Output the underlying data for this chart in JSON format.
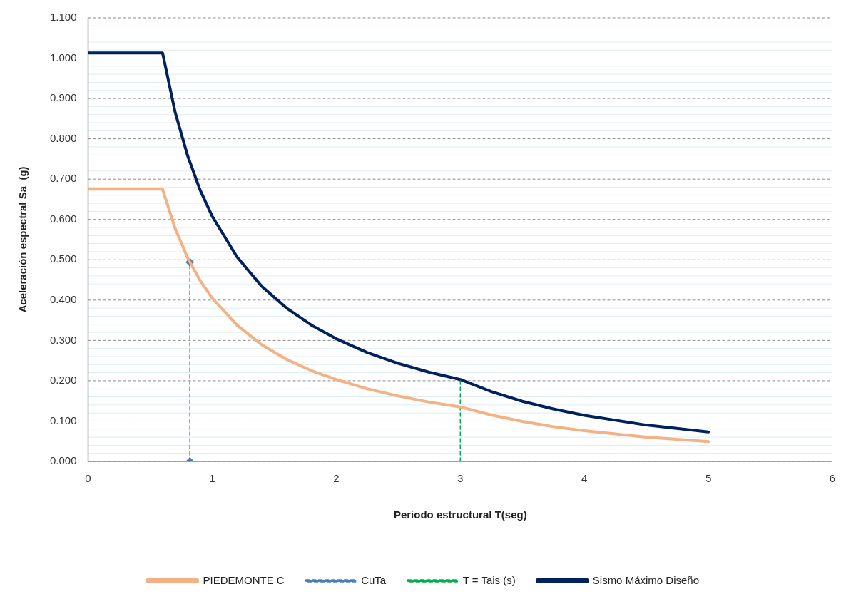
{
  "chart_data": {
    "type": "line",
    "xlabel": "Periodo estructural T(seg)",
    "ylabel": "Aceleración espectral Sa  (g)",
    "xlim": [
      0,
      6
    ],
    "xticks": [
      0,
      1,
      2,
      3,
      4,
      5,
      6
    ],
    "ylim": [
      0,
      1.1
    ],
    "yticks": [
      {
        "value": 0,
        "label": "0.000"
      },
      {
        "value": 0.02,
        "label": null
      },
      {
        "value": 0.04,
        "label": null
      },
      {
        "value": 0.06,
        "label": null
      },
      {
        "value": 0.08,
        "label": null
      },
      {
        "value": 0.1,
        "label": "0.100"
      },
      {
        "value": 0.12,
        "label": null
      },
      {
        "value": 0.14,
        "label": null
      },
      {
        "value": 0.16,
        "label": null
      },
      {
        "value": 0.18,
        "label": null
      },
      {
        "value": 0.2,
        "label": "0.200"
      },
      {
        "value": 0.22,
        "label": null
      },
      {
        "value": 0.24,
        "label": null
      },
      {
        "value": 0.26,
        "label": null
      },
      {
        "value": 0.28,
        "label": null
      },
      {
        "value": 0.3,
        "label": "0.300"
      },
      {
        "value": 0.32,
        "label": null
      },
      {
        "value": 0.34,
        "label": null
      },
      {
        "value": 0.36,
        "label": null
      },
      {
        "value": 0.38,
        "label": null
      },
      {
        "value": 0.4,
        "label": "0.400"
      },
      {
        "value": 0.42,
        "label": null
      },
      {
        "value": 0.44,
        "label": null
      },
      {
        "value": 0.46,
        "label": null
      },
      {
        "value": 0.48,
        "label": null
      },
      {
        "value": 0.5,
        "label": "0.500"
      },
      {
        "value": 0.52,
        "label": null
      },
      {
        "value": 0.54,
        "label": null
      },
      {
        "value": 0.56,
        "label": null
      },
      {
        "value": 0.58,
        "label": null
      },
      {
        "value": 0.6,
        "label": "0.600"
      },
      {
        "value": 0.62,
        "label": null
      },
      {
        "value": 0.64,
        "label": null
      },
      {
        "value": 0.66,
        "label": null
      },
      {
        "value": 0.68,
        "label": null
      },
      {
        "value": 0.7,
        "label": "0.700"
      },
      {
        "value": 0.72,
        "label": null
      },
      {
        "value": 0.74,
        "label": null
      },
      {
        "value": 0.76,
        "label": null
      },
      {
        "value": 0.78,
        "label": null
      },
      {
        "value": 0.8,
        "label": "0.800"
      },
      {
        "value": 0.82,
        "label": null
      },
      {
        "value": 0.84,
        "label": null
      },
      {
        "value": 0.86,
        "label": null
      },
      {
        "value": 0.88,
        "label": null
      },
      {
        "value": 0.9,
        "label": "0.900"
      },
      {
        "value": 0.92,
        "label": null
      },
      {
        "value": 0.94,
        "label": null
      },
      {
        "value": 0.96,
        "label": null
      },
      {
        "value": 0.98,
        "label": null
      },
      {
        "value": 1.0,
        "label": "1.000"
      },
      {
        "value": 1.02,
        "label": null
      },
      {
        "value": 1.04,
        "label": null
      },
      {
        "value": 1.06,
        "label": null
      },
      {
        "value": 1.08,
        "label": null
      },
      {
        "value": 1.1,
        "label": "1.100"
      }
    ],
    "grid": "y",
    "legend": "bottom",
    "series": [
      {
        "name": "PIEDEMONTE C",
        "color": "#f4b183",
        "line_style": "solid",
        "marker": "none",
        "x": [
          0,
          0.6,
          0.7,
          0.8,
          0.9,
          1.0,
          1.2,
          1.4,
          1.6,
          1.8,
          2.0,
          2.25,
          2.5,
          2.75,
          3.0,
          3.25,
          3.5,
          3.75,
          4.0,
          4.5,
          5.0
        ],
        "values": [
          0.675,
          0.675,
          0.579,
          0.506,
          0.45,
          0.405,
          0.338,
          0.289,
          0.253,
          0.225,
          0.203,
          0.18,
          0.162,
          0.147,
          0.135,
          0.115,
          0.099,
          0.086,
          0.076,
          0.06,
          0.049
        ]
      },
      {
        "name": "CuTa",
        "color": "#4a7ebb",
        "line_style": "dashed",
        "marker": "diamond",
        "x": [
          0.82,
          0.82
        ],
        "values": [
          0,
          0.494
        ]
      },
      {
        "name": "T = Tais (s)",
        "color": "#00b050",
        "line_style": "dashed",
        "marker": "none",
        "x": [
          3,
          3
        ],
        "values": [
          0,
          0.205
        ]
      },
      {
        "name": "Sismo Máximo Diseño",
        "color": "#002060",
        "line_style": "solid",
        "marker": "none",
        "x": [
          0,
          0.6,
          0.7,
          0.8,
          0.9,
          1.0,
          1.2,
          1.4,
          1.6,
          1.8,
          2.0,
          2.25,
          2.5,
          2.75,
          3.0,
          3.25,
          3.5,
          3.75,
          4.0,
          4.5,
          5.0
        ],
        "values": [
          1.013,
          1.013,
          0.868,
          0.76,
          0.675,
          0.608,
          0.507,
          0.434,
          0.38,
          0.338,
          0.304,
          0.27,
          0.243,
          0.221,
          0.203,
          0.173,
          0.149,
          0.13,
          0.114,
          0.09,
          0.073
        ]
      }
    ]
  }
}
